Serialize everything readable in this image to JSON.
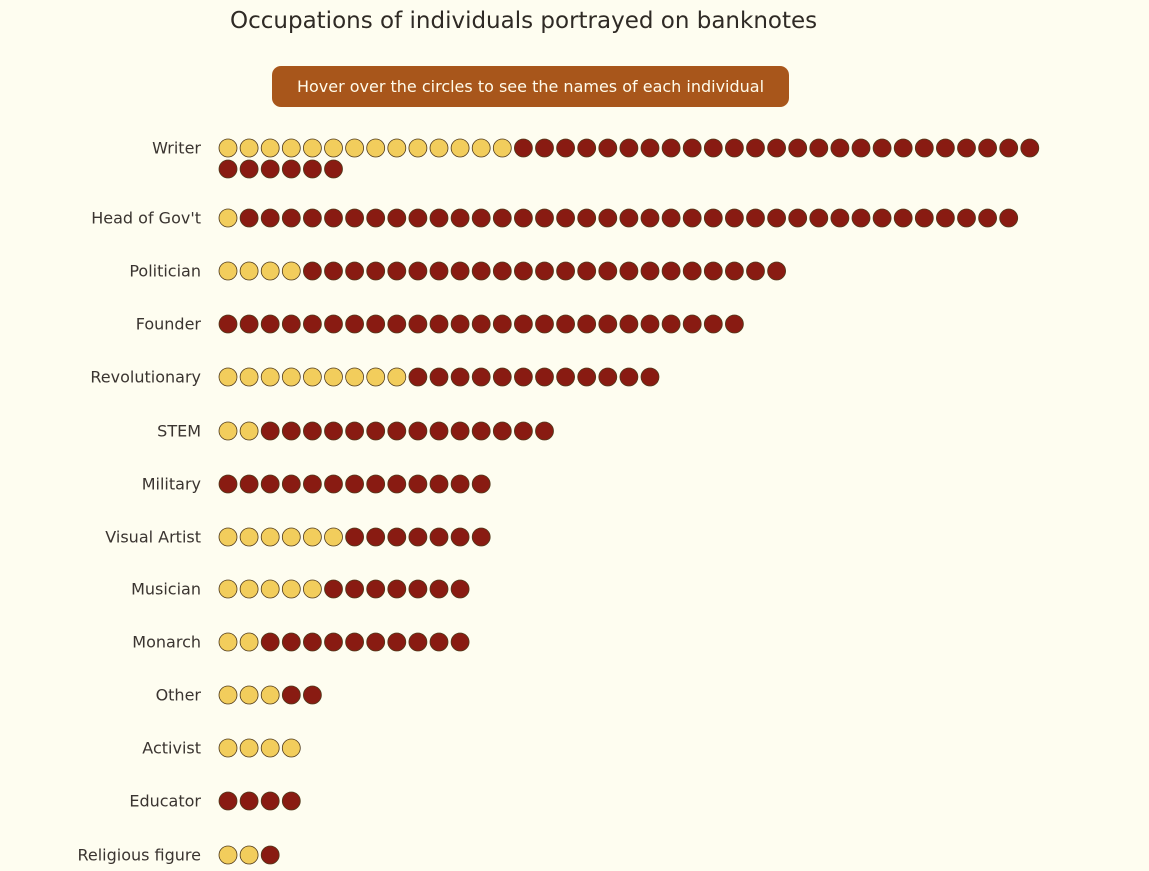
{
  "title": "Occupations of individuals portrayed on banknotes",
  "hint": "Hover over the circles to see the names of each individual",
  "colors": {
    "background": "#fefdf0",
    "hint_background": "#a8561b",
    "female": "#f2cd5c",
    "male": "#891b12",
    "stroke": "#4f3a1c"
  },
  "chart_data": {
    "type": "dot-plot",
    "title": "Occupations of individuals portrayed on banknotes",
    "categories": [
      "Writer",
      "Head of Gov't",
      "Politician",
      "Founder",
      "Revolutionary",
      "STEM",
      "Military",
      "Visual Artist",
      "Musician",
      "Monarch",
      "Other",
      "Activist",
      "Educator",
      "Religious figure"
    ],
    "series": [
      {
        "color": "#f2cd5c",
        "values": [
          14,
          1,
          4,
          0,
          9,
          2,
          0,
          6,
          5,
          2,
          3,
          4,
          0,
          2
        ]
      },
      {
        "color": "#891b12",
        "values": [
          31,
          37,
          23,
          25,
          12,
          14,
          13,
          7,
          7,
          10,
          2,
          0,
          4,
          1
        ]
      }
    ],
    "max_per_row": 39,
    "grid": false,
    "legend": "none"
  }
}
